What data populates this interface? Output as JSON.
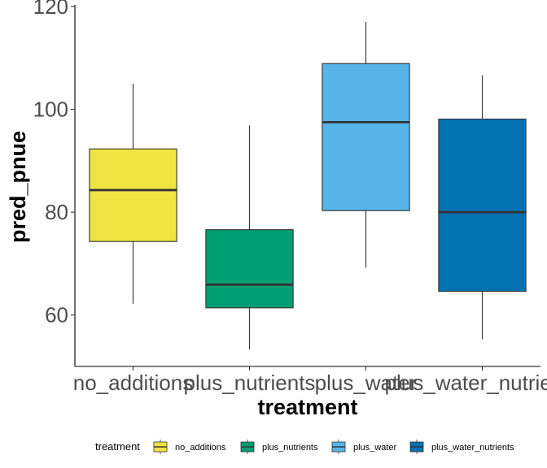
{
  "chart_data": {
    "type": "boxplot",
    "xlabel": "treatment",
    "ylabel": "pred_pnue",
    "ylim": [
      50,
      120
    ],
    "yticks": [
      60,
      80,
      100,
      120
    ],
    "grid": false,
    "legend_placement": "bottom",
    "legend_title": "treatment",
    "categories": [
      "no_additions",
      "plus_nutrients",
      "plus_water",
      "plus_water_nutrients"
    ],
    "boxes": [
      {
        "name": "no_additions",
        "whisker_low": 62.2,
        "q1": 74.3,
        "median": 84.3,
        "q3": 92.3,
        "whisker_high": 105.0,
        "color": "#F0E442"
      },
      {
        "name": "plus_nutrients",
        "whisker_low": 53.3,
        "q1": 61.4,
        "median": 65.9,
        "q3": 76.6,
        "whisker_high": 96.9,
        "color": "#009E73"
      },
      {
        "name": "plus_water",
        "whisker_low": 69.2,
        "q1": 80.3,
        "median": 97.5,
        "q3": 108.9,
        "whisker_high": 117.0,
        "color": "#56B4E9"
      },
      {
        "name": "plus_water_nutrients",
        "whisker_low": 55.3,
        "q1": 64.6,
        "median": 80.0,
        "q3": 98.1,
        "whisker_high": 106.6,
        "color": "#0072B2"
      }
    ]
  }
}
